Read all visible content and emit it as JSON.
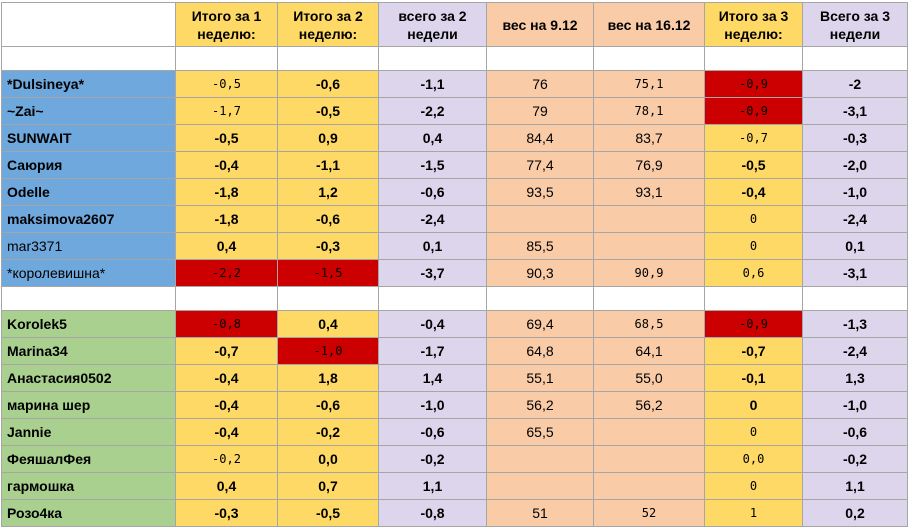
{
  "headers": [
    "",
    "Итого за 1 неделю:",
    "Итого за 2 неделю:",
    "всего за 2 недели",
    "вес на 9.12",
    "вес на 16.12",
    "Итого за 3 неделю:",
    "Всего за 3 недели"
  ],
  "group1": [
    {
      "name": "*Dulsineya*",
      "w1": "-0,5",
      "w2": "-0,6",
      "t2": "-1,1",
      "v9": "76",
      "v16": "75,1",
      "w3": "-0,9",
      "t3": "-2"
    },
    {
      "name": "~Zai~",
      "w1": "-1,7",
      "w2": "-0,5",
      "t2": "-2,2",
      "v9": "79",
      "v16": "78,1",
      "w3": "-0,9",
      "t3": "-3,1"
    },
    {
      "name": "SUNWAIT",
      "w1": "-0,5",
      "w2": "0,9",
      "t2": "0,4",
      "v9": "84,4",
      "v16": "83,7",
      "w3": "-0,7",
      "t3": "-0,3"
    },
    {
      "name": "Саюрия",
      "w1": "-0,4",
      "w2": "-1,1",
      "t2": "-1,5",
      "v9": "77,4",
      "v16": "76,9",
      "w3": "-0,5",
      "t3": "-2,0"
    },
    {
      "name": "Odelle",
      "w1": "-1,8",
      "w2": "1,2",
      "t2": "-0,6",
      "v9": "93,5",
      "v16": "93,1",
      "w3": "-0,4",
      "t3": "-1,0"
    },
    {
      "name": "maksimova2607",
      "w1": "-1,8",
      "w2": "-0,6",
      "t2": "-2,4",
      "v9": "",
      "v16": "",
      "w3": "0",
      "t3": "-2,4"
    },
    {
      "name": "mar3371",
      "w1": "0,4",
      "w2": "-0,3",
      "t2": "0,1",
      "v9": "85,5",
      "v16": "",
      "w3": "0",
      "t3": "0,1"
    },
    {
      "name": "*королевишна*",
      "w1": "-2,2",
      "w2": "-1,5",
      "t2": "-3,7",
      "v9": "90,3",
      "v16": "90,9",
      "w3": "0,6",
      "t3": "-3,1"
    }
  ],
  "group2": [
    {
      "name": "Korolek5",
      "w1": "-0,8",
      "w2": "0,4",
      "t2": "-0,4",
      "v9": "69,4",
      "v16": "68,5",
      "w3": "-0,9",
      "t3": "-1,3"
    },
    {
      "name": "Marina34",
      "w1": "-0,7",
      "w2": "-1,0",
      "t2": "-1,7",
      "v9": "64,8",
      "v16": "64,1",
      "w3": "-0,7",
      "t3": "-2,4"
    },
    {
      "name": "Анастасия0502",
      "w1": "-0,4",
      "w2": "1,8",
      "t2": "1,4",
      "v9": "55,1",
      "v16": "55,0",
      "w3": "-0,1",
      "t3": "1,3"
    },
    {
      "name": "марина шер",
      "w1": "-0,4",
      "w2": "-0,6",
      "t2": "-1,0",
      "v9": "56,2",
      "v16": "56,2",
      "w3": "0",
      "t3": "-1,0"
    },
    {
      "name": "Jannie",
      "w1": "-0,4",
      "w2": "-0,2",
      "t2": "-0,6",
      "v9": "65,5",
      "v16": "",
      "w3": "0",
      "t3": "-0,6"
    },
    {
      "name": "ФеяшалФея",
      "w1": "-0,2",
      "w2": "0,0",
      "t2": "-0,2",
      "v9": "",
      "v16": "",
      "w3": "0,0",
      "t3": "-0,2"
    },
    {
      "name": "гармошка",
      "w1": "0,4",
      "w2": "0,7",
      "t2": "1,1",
      "v9": "",
      "v16": "",
      "w3": "0",
      "t3": "1,1"
    },
    {
      "name": "Розо4ка",
      "w1": "-0,3",
      "w2": "-0,5",
      "t2": "-0,8",
      "v9": "51",
      "v16": "52",
      "w3": "1",
      "t3": "0,2"
    }
  ],
  "colors": {
    "yellow": "#ffd966",
    "lavender": "#dcd5ec",
    "peach": "#f9cba6",
    "blue": "#6fa8dc",
    "green": "#a9d08e",
    "red": "#cc0000"
  }
}
